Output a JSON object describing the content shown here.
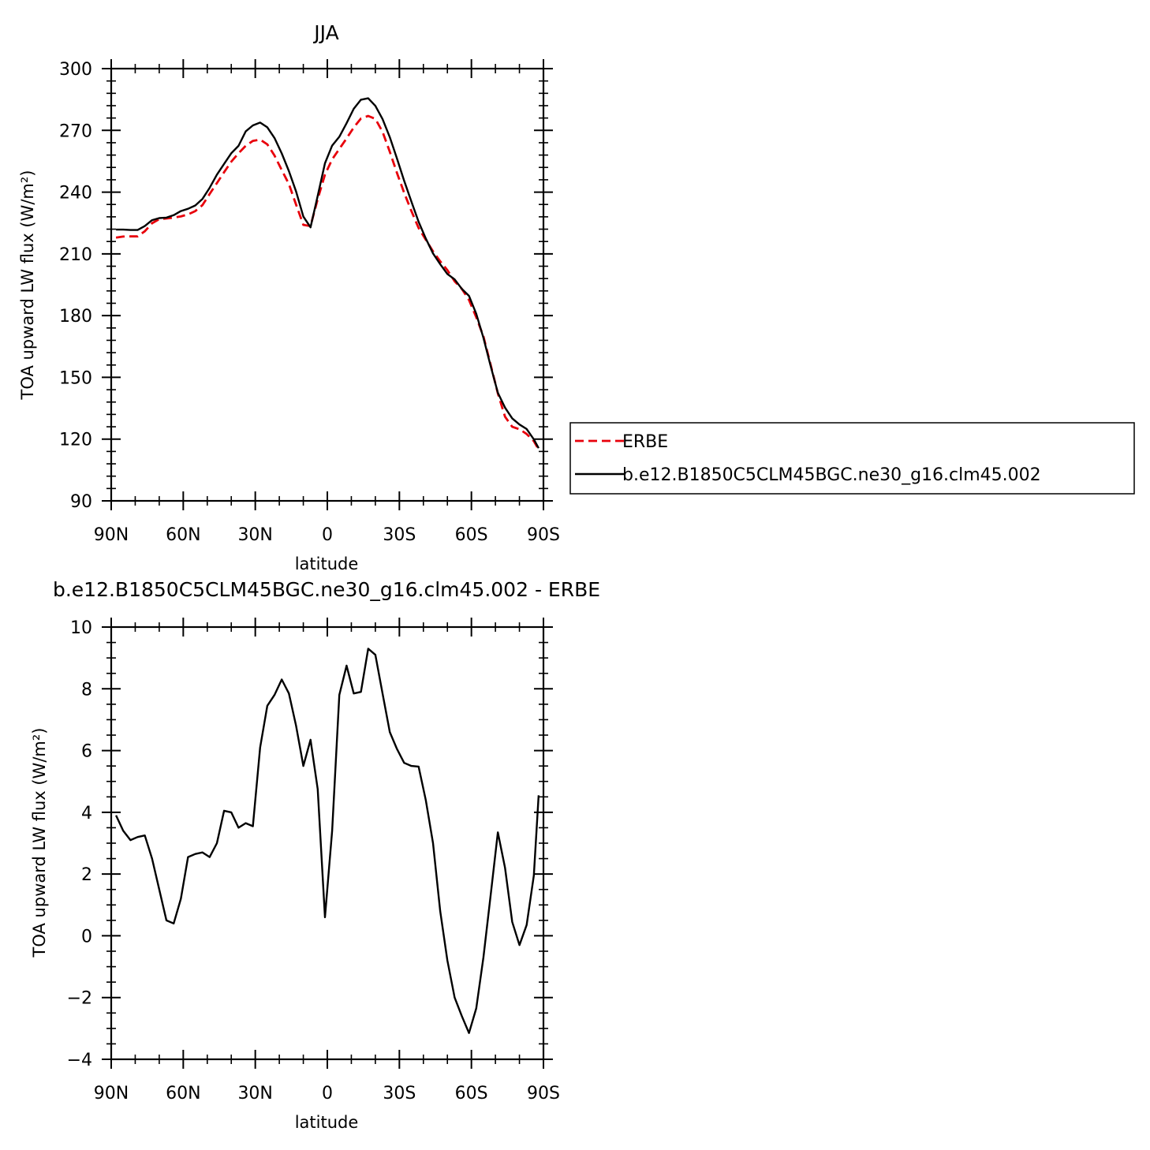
{
  "chart_data": [
    {
      "type": "line",
      "title": "JJA",
      "xlabel": "latitude",
      "ylabel": "TOA upward LW flux (W/m²)",
      "xlim": [
        -90,
        90
      ],
      "ylim": [
        90,
        300
      ],
      "xticks": [
        -90,
        -60,
        -30,
        0,
        30,
        60,
        90
      ],
      "xticklabels": [
        "90N",
        "60N",
        "30N",
        "0",
        "30S",
        "60S",
        "90S"
      ],
      "yticks": [
        90,
        120,
        150,
        180,
        210,
        240,
        270,
        300
      ],
      "yticklabels": [
        "90",
        "120",
        "150",
        "180",
        "210",
        "240",
        "270",
        "300"
      ],
      "grid": false,
      "legend": "right",
      "series": [
        {
          "name": "ERBE",
          "color": "#e8000b",
          "dash": "dashed",
          "x": [
            -88,
            -85,
            -82,
            -79,
            -76,
            -73,
            -70,
            -67,
            -64,
            -61,
            -58,
            -55,
            -52,
            -49,
            -46,
            -43,
            -40,
            -37,
            -34,
            -31,
            -28,
            -25,
            -22,
            -19,
            -16,
            -13,
            -10,
            -7,
            -4,
            -1,
            2,
            5,
            8,
            11,
            14,
            17,
            20,
            23,
            26,
            29,
            32,
            35,
            38,
            41,
            44,
            47,
            50,
            53,
            56,
            59,
            62,
            65,
            68,
            71,
            74,
            77,
            80,
            83,
            86,
            88
          ],
          "y": [
            217.9,
            218.4,
            218.5,
            218.5,
            221,
            224.9,
            226.9,
            227.2,
            227.6,
            228.2,
            229.2,
            230.8,
            233.7,
            239.1,
            244.4,
            249.7,
            254.8,
            258.9,
            262.5,
            264.9,
            265.5,
            263.2,
            257.8,
            250.7,
            243.9,
            233.9,
            224.1,
            223.5,
            236.6,
            248.5,
            255.9,
            261,
            266.1,
            271.4,
            275.8,
            277,
            275.6,
            269.3,
            259.6,
            249.3,
            239.7,
            230.8,
            222.6,
            216.9,
            211.2,
            206.4,
            202.1,
            196.7,
            193,
            187.6,
            179.2,
            169.9,
            156.2,
            142.2,
            130.9,
            126,
            124.8,
            122.5,
            119,
            115
          ]
        },
        {
          "name": "b.e12.B1850C5CLM45BGC.ne30_g16.clm45.002",
          "color": "#000000",
          "dash": "solid",
          "x": [
            -88,
            -85,
            -82,
            -79,
            -76,
            -73,
            -70,
            -67,
            -64,
            -61,
            -58,
            -55,
            -52,
            -49,
            -46,
            -43,
            -40,
            -37,
            -34,
            -31,
            -28,
            -25,
            -22,
            -19,
            -16,
            -13,
            -10,
            -7,
            -4,
            -1,
            2,
            5,
            8,
            11,
            14,
            17,
            20,
            23,
            26,
            29,
            32,
            35,
            38,
            41,
            44,
            47,
            50,
            53,
            56,
            59,
            62,
            65,
            68,
            71,
            74,
            77,
            80,
            83,
            86,
            88
          ],
          "y": [
            221.8,
            221.8,
            221.6,
            221.6,
            223.5,
            226.4,
            227.4,
            227.6,
            228.8,
            230.8,
            231.9,
            233.5,
            236.7,
            242.1,
            248.5,
            253.7,
            258.9,
            262.5,
            269.5,
            272.4,
            273.8,
            271.5,
            266.3,
            258.8,
            250.2,
            240.3,
            228.1,
            222.9,
            238.2,
            254,
            262.6,
            266.9,
            273.5,
            280.5,
            284.9,
            285.6,
            281.9,
            275.5,
            266.7,
            256.3,
            245.5,
            235.4,
            225.6,
            217.5,
            210.2,
            205,
            200.2,
            197.6,
            193,
            189.6,
            180.9,
            169.2,
            155.6,
            142.5,
            135.3,
            130.1,
            127.1,
            124.9,
            119.9,
            115.6
          ]
        }
      ]
    },
    {
      "type": "line",
      "title": "b.e12.B1850C5CLM45BGC.ne30_g16.clm45.002 - ERBE",
      "xlabel": "latitude",
      "ylabel": "TOA upward LW flux (W/m²)",
      "xlim": [
        -90,
        90
      ],
      "ylim": [
        -4,
        10
      ],
      "xticks": [
        -90,
        -60,
        -30,
        0,
        30,
        60,
        90
      ],
      "xticklabels": [
        "90N",
        "60N",
        "30N",
        "0",
        "30S",
        "60S",
        "90S"
      ],
      "yticks": [
        -4,
        -2,
        0,
        2,
        4,
        6,
        8,
        10
      ],
      "yticklabels": [
        "−4",
        "−2",
        "0",
        "2",
        "4",
        "6",
        "8",
        "10"
      ],
      "grid": false,
      "series": [
        {
          "color": "#000000",
          "x": [
            -88,
            -85,
            -82,
            -79,
            -76,
            -73,
            -70,
            -67,
            -64,
            -61,
            -58,
            -55,
            -52,
            -49,
            -46,
            -43,
            -40,
            -37,
            -34,
            -31,
            -28,
            -25,
            -22,
            -19,
            -16,
            -13,
            -10,
            -7,
            -4,
            -1,
            2,
            5,
            8,
            11,
            14,
            17,
            20,
            23,
            26,
            29,
            32,
            35,
            38,
            41,
            44,
            47,
            50,
            53,
            56,
            59,
            62,
            65,
            68,
            71,
            74,
            77,
            80,
            83,
            86,
            88
          ],
          "y": [
            3.9,
            3.4,
            3.1,
            3.2,
            3.25,
            2.5,
            1.5,
            0.5,
            0.4,
            1.2,
            2.55,
            2.65,
            2.7,
            2.55,
            3,
            4.05,
            4,
            3.5,
            3.65,
            3.55,
            6.1,
            7.45,
            7.8,
            8.3,
            7.85,
            6.8,
            5.5,
            6.35,
            4.75,
            0.6,
            3.4,
            7.8,
            8.75,
            7.85,
            7.9,
            9.3,
            9.1,
            7.85,
            6.6,
            6.05,
            5.6,
            5.5,
            5.48,
            4.4,
            3,
            0.8,
            -0.8,
            -2,
            -2.6,
            -3.15,
            -2.35,
            -0.7,
            1.3,
            3.35,
            2.2,
            0.45,
            -0.3,
            0.35,
            1.95,
            4.55
          ]
        }
      ]
    }
  ]
}
